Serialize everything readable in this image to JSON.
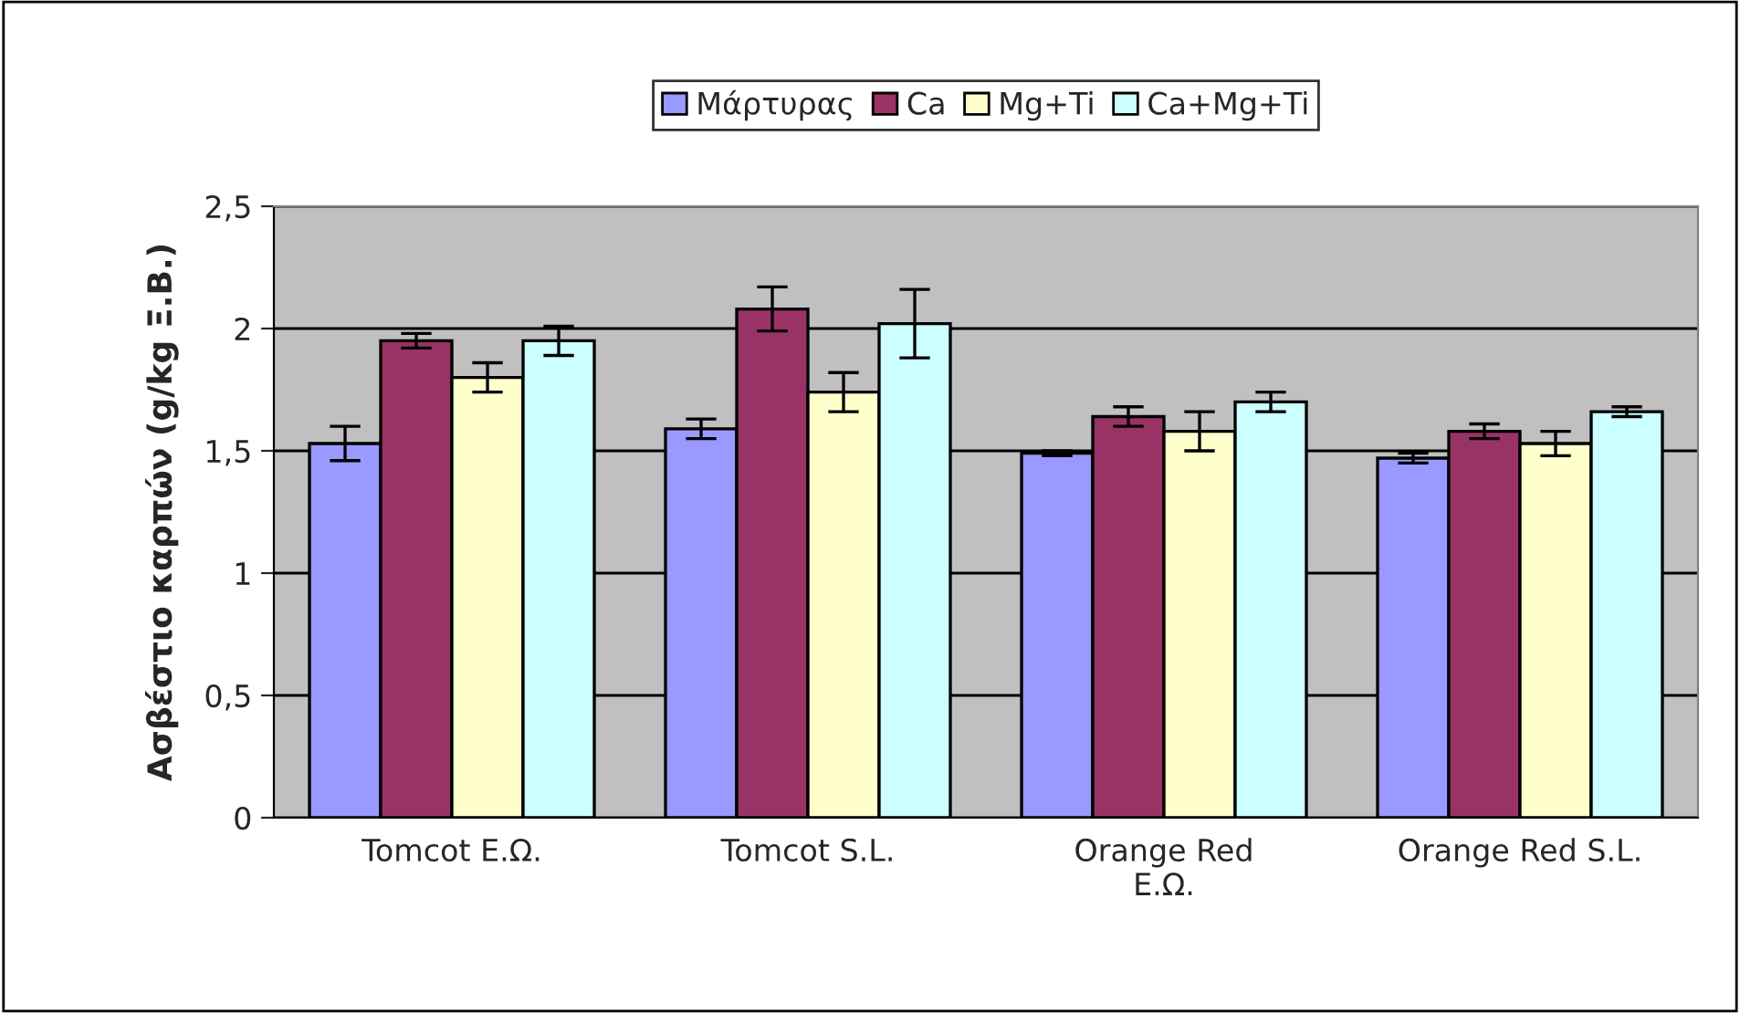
{
  "chart_data": {
    "type": "bar",
    "ylabel": "Ασβέστιο καρπών (g/kg Ξ.Β.)",
    "categories": [
      "Tomcot Ε.Ω.",
      "Tomcot S.L.",
      "Orange Red\nΕ.Ω.",
      "Orange Red S.L."
    ],
    "series": [
      {
        "name": "Μάρτυρας",
        "color": "#9999ff",
        "values": [
          1.53,
          1.59,
          1.49,
          1.47
        ],
        "errors": [
          0.07,
          0.04,
          0.01,
          0.02
        ]
      },
      {
        "name": "Ca",
        "color": "#993366",
        "values": [
          1.95,
          2.08,
          1.64,
          1.58
        ],
        "errors": [
          0.03,
          0.09,
          0.04,
          0.03
        ]
      },
      {
        "name": "Mg+Ti",
        "color": "#ffffcc",
        "values": [
          1.8,
          1.74,
          1.58,
          1.53
        ],
        "errors": [
          0.06,
          0.08,
          0.08,
          0.05
        ]
      },
      {
        "name": "Ca+Mg+Ti",
        "color": "#ccffff",
        "values": [
          1.95,
          2.02,
          1.7,
          1.66
        ],
        "errors": [
          0.06,
          0.14,
          0.04,
          0.02
        ]
      }
    ],
    "ylim": [
      0,
      2.5
    ],
    "yticks": [
      0,
      {
        "value": 0.5,
        "label": "0,5"
      },
      1,
      {
        "value": 1.5,
        "label": "1,5"
      },
      2,
      {
        "value": 2.5,
        "label": "2,5"
      }
    ],
    "grid": "y",
    "legend": "top"
  }
}
